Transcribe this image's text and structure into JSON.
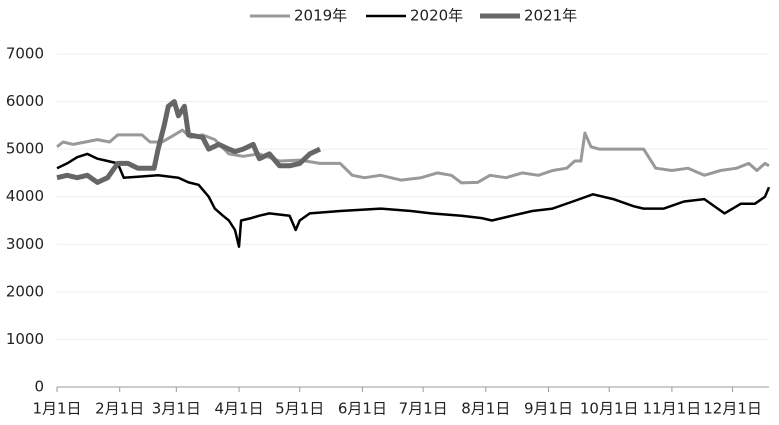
{
  "chart_data": {
    "type": "line",
    "xlim": [
      0,
      352
    ],
    "xticks": [
      {
        "value": 0,
        "label": "1月1日"
      },
      {
        "value": 31,
        "label": "2月1日"
      },
      {
        "value": 59,
        "label": "3月1日"
      },
      {
        "value": 90,
        "label": "4月1日"
      },
      {
        "value": 120,
        "label": "5月1日"
      },
      {
        "value": 151,
        "label": "6月1日"
      },
      {
        "value": 181,
        "label": "7月1日"
      },
      {
        "value": 212,
        "label": "8月1日"
      },
      {
        "value": 243,
        "label": "9月1日"
      },
      {
        "value": 273,
        "label": "10月1日"
      },
      {
        "value": 304,
        "label": "11月1日"
      },
      {
        "value": 334,
        "label": "12月1日"
      }
    ],
    "ylim": [
      0,
      7000
    ],
    "yticks": [
      0,
      1000,
      2000,
      3000,
      4000,
      5000,
      6000,
      7000
    ],
    "grid": true,
    "series": [
      {
        "name": "2019年",
        "color": "#999999",
        "width": 3,
        "x": [
          0,
          3,
          8,
          14,
          20,
          26,
          30,
          36,
          42,
          46,
          52,
          58,
          62,
          66,
          72,
          78,
          85,
          92,
          100,
          110,
          120,
          130,
          140,
          146,
          152,
          160,
          170,
          180,
          188,
          195,
          200,
          208,
          214,
          222,
          230,
          238,
          245,
          252,
          256,
          259,
          261,
          264,
          268,
          272,
          280,
          290,
          296,
          304,
          312,
          320,
          328,
          336,
          342,
          346,
          350,
          352
        ],
        "values": [
          5050,
          5150,
          5100,
          5150,
          5200,
          5150,
          5300,
          5300,
          5300,
          5150,
          5150,
          5300,
          5400,
          5250,
          5300,
          5200,
          4900,
          4850,
          4900,
          4750,
          4770,
          4700,
          4700,
          4450,
          4400,
          4450,
          4350,
          4400,
          4500,
          4450,
          4290,
          4300,
          4450,
          4400,
          4500,
          4450,
          4550,
          4600,
          4750,
          4750,
          5340,
          5050,
          5000,
          5000,
          5000,
          5000,
          4600,
          4550,
          4600,
          4450,
          4550,
          4600,
          4700,
          4550,
          4700,
          4650
        ]
      },
      {
        "name": "2020年",
        "color": "#000000",
        "width": 2.5,
        "x": [
          0,
          5,
          10,
          15,
          20,
          25,
          30,
          33,
          40,
          50,
          60,
          65,
          70,
          75,
          78,
          82,
          85,
          88,
          90,
          91,
          96,
          100,
          105,
          115,
          118,
          120,
          125,
          140,
          160,
          175,
          185,
          200,
          210,
          215,
          225,
          235,
          245,
          255,
          265,
          275,
          285,
          290,
          300,
          310,
          320,
          330,
          338,
          345,
          350,
          352
        ],
        "values": [
          4600,
          4700,
          4830,
          4900,
          4800,
          4750,
          4700,
          4400,
          4420,
          4450,
          4400,
          4300,
          4250,
          4000,
          3750,
          3600,
          3500,
          3300,
          2950,
          3500,
          3550,
          3600,
          3650,
          3600,
          3300,
          3500,
          3650,
          3700,
          3750,
          3700,
          3650,
          3600,
          3550,
          3500,
          3600,
          3700,
          3750,
          3900,
          4050,
          3950,
          3800,
          3750,
          3750,
          3900,
          3950,
          3650,
          3850,
          3850,
          4000,
          4200
        ]
      },
      {
        "name": "2021年",
        "color": "#666666",
        "width": 5,
        "x": [
          0,
          5,
          10,
          15,
          20,
          25,
          30,
          35,
          40,
          48,
          50,
          53,
          55,
          58,
          60,
          63,
          65,
          72,
          75,
          80,
          85,
          88,
          92,
          97,
          100,
          105,
          110,
          115,
          120,
          125,
          130
        ],
        "values": [
          4400,
          4450,
          4400,
          4450,
          4300,
          4400,
          4700,
          4700,
          4600,
          4600,
          5000,
          5500,
          5900,
          6000,
          5700,
          5900,
          5300,
          5250,
          5000,
          5100,
          5000,
          4950,
          5000,
          5100,
          4800,
          4900,
          4650,
          4650,
          4700,
          4900,
          5000
        ]
      }
    ]
  }
}
